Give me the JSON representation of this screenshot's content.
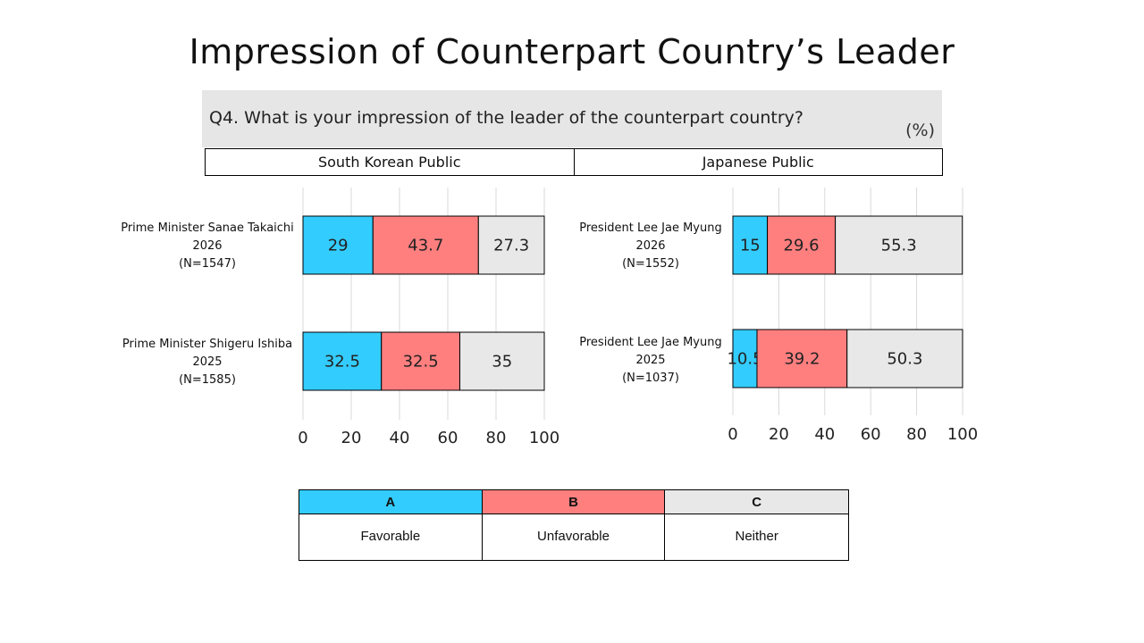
{
  "title": "Impression of Counterpart Country’s Leader",
  "question": "Q4. What is your impression of the leader of the counterpart country?",
  "unit": "(%)",
  "panels": [
    "South Korean Public",
    "Japanese Public"
  ],
  "colors": {
    "A": "#33ccff",
    "B": "#ff7f7f",
    "C": "#e8e8e8"
  },
  "legend": [
    {
      "key": "A",
      "label": "Favorable"
    },
    {
      "key": "B",
      "label": "Unfavorable"
    },
    {
      "key": "C",
      "label": "Neither"
    }
  ],
  "chart_data": [
    {
      "type": "bar",
      "orientation": "horizontal",
      "stacked": true,
      "panel": "South Korean Public",
      "categories": [
        [
          "Prime Minister Sanae Takaichi",
          "2026",
          "(N=1547)"
        ],
        [
          "Prime Minister Shigeru Ishiba",
          "2025",
          "(N=1585)"
        ]
      ],
      "series": [
        {
          "name": "A",
          "values": [
            29,
            32.5
          ]
        },
        {
          "name": "B",
          "values": [
            43.7,
            32.5
          ]
        },
        {
          "name": "C",
          "values": [
            27.3,
            35
          ]
        }
      ],
      "xlim": [
        0,
        100
      ],
      "xticks": [
        0,
        20,
        40,
        60,
        80,
        100
      ],
      "grid": true
    },
    {
      "type": "bar",
      "orientation": "horizontal",
      "stacked": true,
      "panel": "Japanese Public",
      "categories": [
        [
          "President Lee Jae Myung",
          "2026",
          "(N=1552)"
        ],
        [
          "President Lee Jae Myung",
          "2025",
          "(N=1037)"
        ]
      ],
      "series": [
        {
          "name": "A",
          "values": [
            15,
            10.5
          ]
        },
        {
          "name": "B",
          "values": [
            29.6,
            39.2
          ]
        },
        {
          "name": "C",
          "values": [
            55.3,
            50.3
          ]
        }
      ],
      "xlim": [
        0,
        100
      ],
      "xticks": [
        0,
        20,
        40,
        60,
        80,
        100
      ],
      "grid": true
    }
  ]
}
